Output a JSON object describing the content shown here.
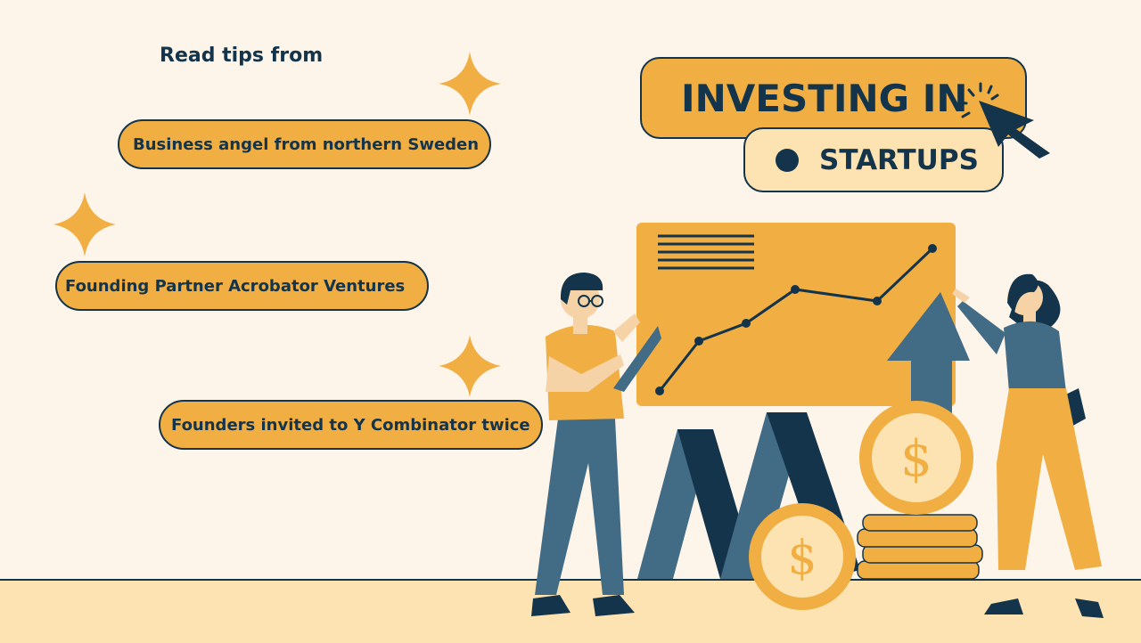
{
  "heading": "Read tips from",
  "tips": [
    "Business angel from northern Sweden",
    "Founding Partner Acrobator Ventures",
    "Founders invited to Y Combinator twice"
  ],
  "title": {
    "line1": "INVESTING IN",
    "line2": "STARTUPS"
  },
  "icons": [
    "sparkle-icon",
    "cursor-icon",
    "dollar-coin-icon",
    "line-chart-icon",
    "arrow-up-icon"
  ],
  "colors": {
    "background": "#fdf5ea",
    "accent": "#f0ae43",
    "light_accent": "#fde2b2",
    "navy": "#13344a",
    "slate": "#426b86"
  }
}
